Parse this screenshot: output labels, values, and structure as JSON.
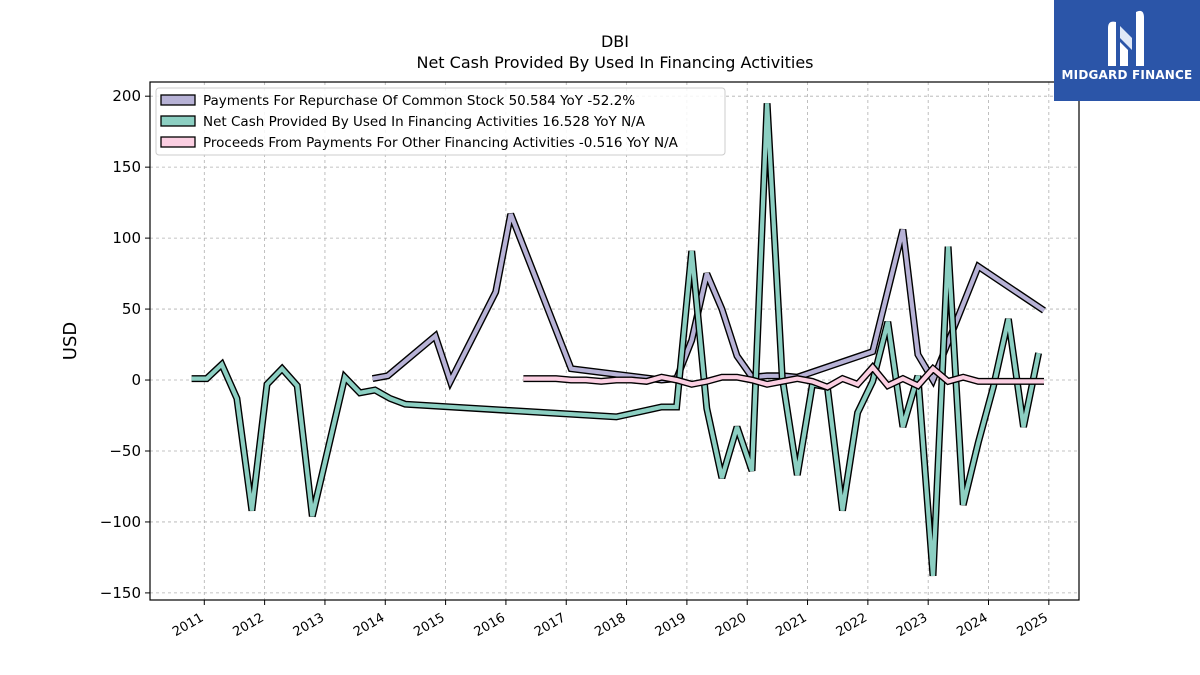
{
  "brand": {
    "name": "MIDGARD FINANCE",
    "bg_color": "#2b55a8",
    "icon": "midgard-logo-icon"
  },
  "chart_data": {
    "type": "line",
    "title": "DBI",
    "subtitle": "Net Cash Provided By Used In Financing Activities",
    "xlabel": "",
    "ylabel": "USD",
    "xlim": [
      2010.1,
      2025.5
    ],
    "ylim": [
      -155,
      210
    ],
    "x_ticks": [
      "2011",
      "2012",
      "2013",
      "2014",
      "2015",
      "2016",
      "2017",
      "2018",
      "2019",
      "2020",
      "2021",
      "2022",
      "2023",
      "2024",
      "2025"
    ],
    "y_ticks": [
      200,
      150,
      100,
      50,
      0,
      -50,
      -100,
      -150
    ],
    "y_tick_labels": [
      "200",
      "150",
      "100",
      "50",
      "0",
      "−50",
      "−100",
      "−150"
    ],
    "grid": true,
    "legend_position": "top-left",
    "series": [
      {
        "name": "Payments For Repurchase Of Common Stock",
        "legend": "Payments For Repurchase Of Common Stock  50.584 YoY -52.2%",
        "color": "#b7b2d6",
        "points": [
          [
            2013.79,
            1
          ],
          [
            2014.04,
            3
          ],
          [
            2014.83,
            31
          ],
          [
            2015.08,
            -1
          ],
          [
            2015.83,
            62
          ],
          [
            2016.08,
            117
          ],
          [
            2017.08,
            8
          ],
          [
            2018.58,
            0
          ],
          [
            2018.83,
            1
          ],
          [
            2019.08,
            28
          ],
          [
            2019.33,
            75
          ],
          [
            2019.58,
            50
          ],
          [
            2019.83,
            17
          ],
          [
            2020.08,
            2
          ],
          [
            2020.33,
            3
          ],
          [
            2020.58,
            3
          ],
          [
            2020.83,
            2
          ],
          [
            2022.08,
            20
          ],
          [
            2022.58,
            106
          ],
          [
            2022.83,
            18
          ],
          [
            2023.08,
            0
          ],
          [
            2023.83,
            80
          ],
          [
            2024.92,
            49
          ]
        ]
      },
      {
        "name": "Net Cash Provided By Used In Financing Activities",
        "legend": "Net Cash Provided By Used In Financing Activities  16.528 YoY N/A",
        "color": "#8ccfc2",
        "points": [
          [
            2010.79,
            1
          ],
          [
            2011.04,
            1
          ],
          [
            2011.29,
            11
          ],
          [
            2011.54,
            -13
          ],
          [
            2011.79,
            -92
          ],
          [
            2012.04,
            -3
          ],
          [
            2012.29,
            8
          ],
          [
            2012.54,
            -4
          ],
          [
            2012.79,
            -96
          ],
          [
            2013.33,
            2
          ],
          [
            2013.58,
            -9
          ],
          [
            2013.83,
            -7
          ],
          [
            2014.08,
            -13
          ],
          [
            2014.33,
            -17
          ],
          [
            2017.83,
            -26
          ],
          [
            2018.58,
            -19
          ],
          [
            2018.83,
            -19
          ],
          [
            2019.08,
            91
          ],
          [
            2019.33,
            -20
          ],
          [
            2019.58,
            -69
          ],
          [
            2019.83,
            -33
          ],
          [
            2020.08,
            -64
          ],
          [
            2020.33,
            195
          ],
          [
            2020.58,
            2
          ],
          [
            2020.83,
            -67
          ],
          [
            2021.08,
            -3
          ],
          [
            2021.33,
            -5
          ],
          [
            2021.58,
            -92
          ],
          [
            2021.83,
            -23
          ],
          [
            2022.08,
            -1
          ],
          [
            2022.33,
            41
          ],
          [
            2022.58,
            -33
          ],
          [
            2022.83,
            3
          ],
          [
            2023.08,
            -138
          ],
          [
            2023.33,
            94
          ],
          [
            2023.58,
            -88
          ],
          [
            2023.83,
            -44
          ],
          [
            2024.08,
            -5
          ],
          [
            2024.33,
            43
          ],
          [
            2024.58,
            -33
          ],
          [
            2024.83,
            19
          ]
        ]
      },
      {
        "name": "Proceeds From Payments For Other Financing Activities",
        "legend": "Proceeds From Payments For Other Financing Activities  -0.516 YoY N/A",
        "color": "#fbcfe2",
        "points": [
          [
            2016.29,
            1
          ],
          [
            2016.83,
            1
          ],
          [
            2017.08,
            0
          ],
          [
            2017.33,
            0
          ],
          [
            2017.58,
            -1
          ],
          [
            2017.83,
            0
          ],
          [
            2018.08,
            0
          ],
          [
            2018.33,
            -1
          ],
          [
            2018.58,
            2
          ],
          [
            2018.83,
            0
          ],
          [
            2019.08,
            -3
          ],
          [
            2019.33,
            -1
          ],
          [
            2019.58,
            2
          ],
          [
            2019.83,
            2
          ],
          [
            2020.08,
            0
          ],
          [
            2020.33,
            -3
          ],
          [
            2020.58,
            -1
          ],
          [
            2020.83,
            1
          ],
          [
            2021.08,
            -1
          ],
          [
            2021.33,
            -5
          ],
          [
            2021.58,
            1
          ],
          [
            2021.83,
            -3
          ],
          [
            2022.08,
            9
          ],
          [
            2022.33,
            -4
          ],
          [
            2022.58,
            1
          ],
          [
            2022.83,
            -4
          ],
          [
            2023.08,
            8
          ],
          [
            2023.33,
            -1
          ],
          [
            2023.58,
            2
          ],
          [
            2023.83,
            -1
          ],
          [
            2024.92,
            -1
          ]
        ]
      }
    ]
  }
}
